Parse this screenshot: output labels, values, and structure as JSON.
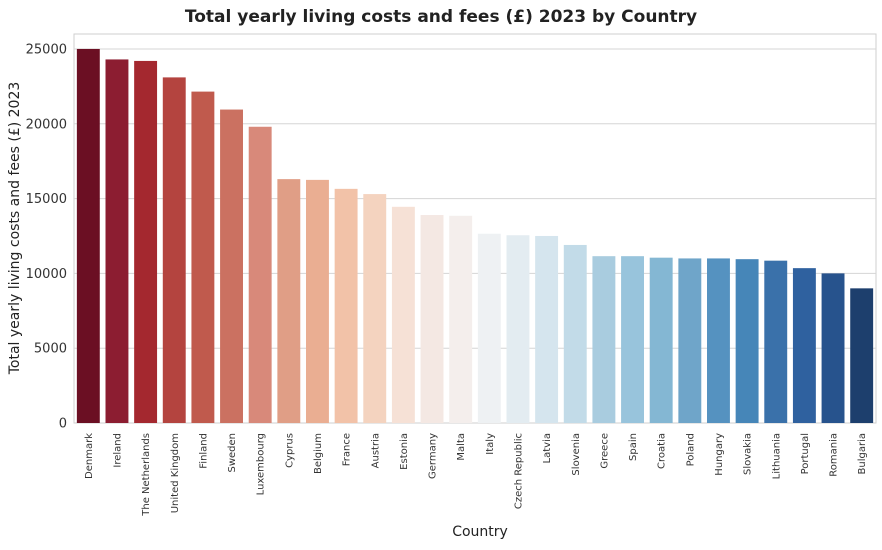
{
  "chart_data": {
    "type": "bar",
    "title": "Total yearly living costs and fees (£) 2023 by Country",
    "xlabel": "Country",
    "ylabel": "Total yearly living costs and fees (£) 2023",
    "ylim": [
      0,
      26000
    ],
    "yticks": [
      0,
      5000,
      10000,
      15000,
      20000,
      25000
    ],
    "grid": "horizontal",
    "categories": [
      "Denmark",
      "Ireland",
      "The Netherlands",
      "United Kingdom",
      "Finland",
      "Sweden",
      "Luxembourg",
      "Cyprus",
      "Belgium",
      "France",
      "Austria",
      "Estonia",
      "Germany",
      "Malta",
      "Italy",
      "Czech Republic",
      "Latvia",
      "Slovenia",
      "Greece",
      "Spain",
      "Croatia",
      "Poland",
      "Hungary",
      "Slovakia",
      "Lithuania",
      "Portugal",
      "Romania",
      "Bulgaria"
    ],
    "values": [
      25000,
      24300,
      24200,
      23100,
      22150,
      20950,
      19800,
      16300,
      16250,
      15650,
      15300,
      14450,
      13900,
      13850,
      12650,
      12550,
      12500,
      11900,
      11150,
      11150,
      11050,
      11000,
      11000,
      10950,
      10850,
      10350,
      10000,
      9000
    ],
    "colors": [
      "#6b0f23",
      "#8c1d31",
      "#a4282f",
      "#b4443f",
      "#c05a4d",
      "#cb7161",
      "#d8897a",
      "#e09e86",
      "#eaae92",
      "#f2c2a8",
      "#f4d3bf",
      "#f6e1d6",
      "#f4e8e3",
      "#f4eeec",
      "#eef1f3",
      "#e3ecf1",
      "#d5e5ee",
      "#c2dbe8",
      "#a9ccdf",
      "#98c4dc",
      "#84b7d3",
      "#6fa5c9",
      "#5592c0",
      "#4686b8",
      "#3a71aa",
      "#2f619f",
      "#27538d",
      "#1d3f6d"
    ]
  }
}
